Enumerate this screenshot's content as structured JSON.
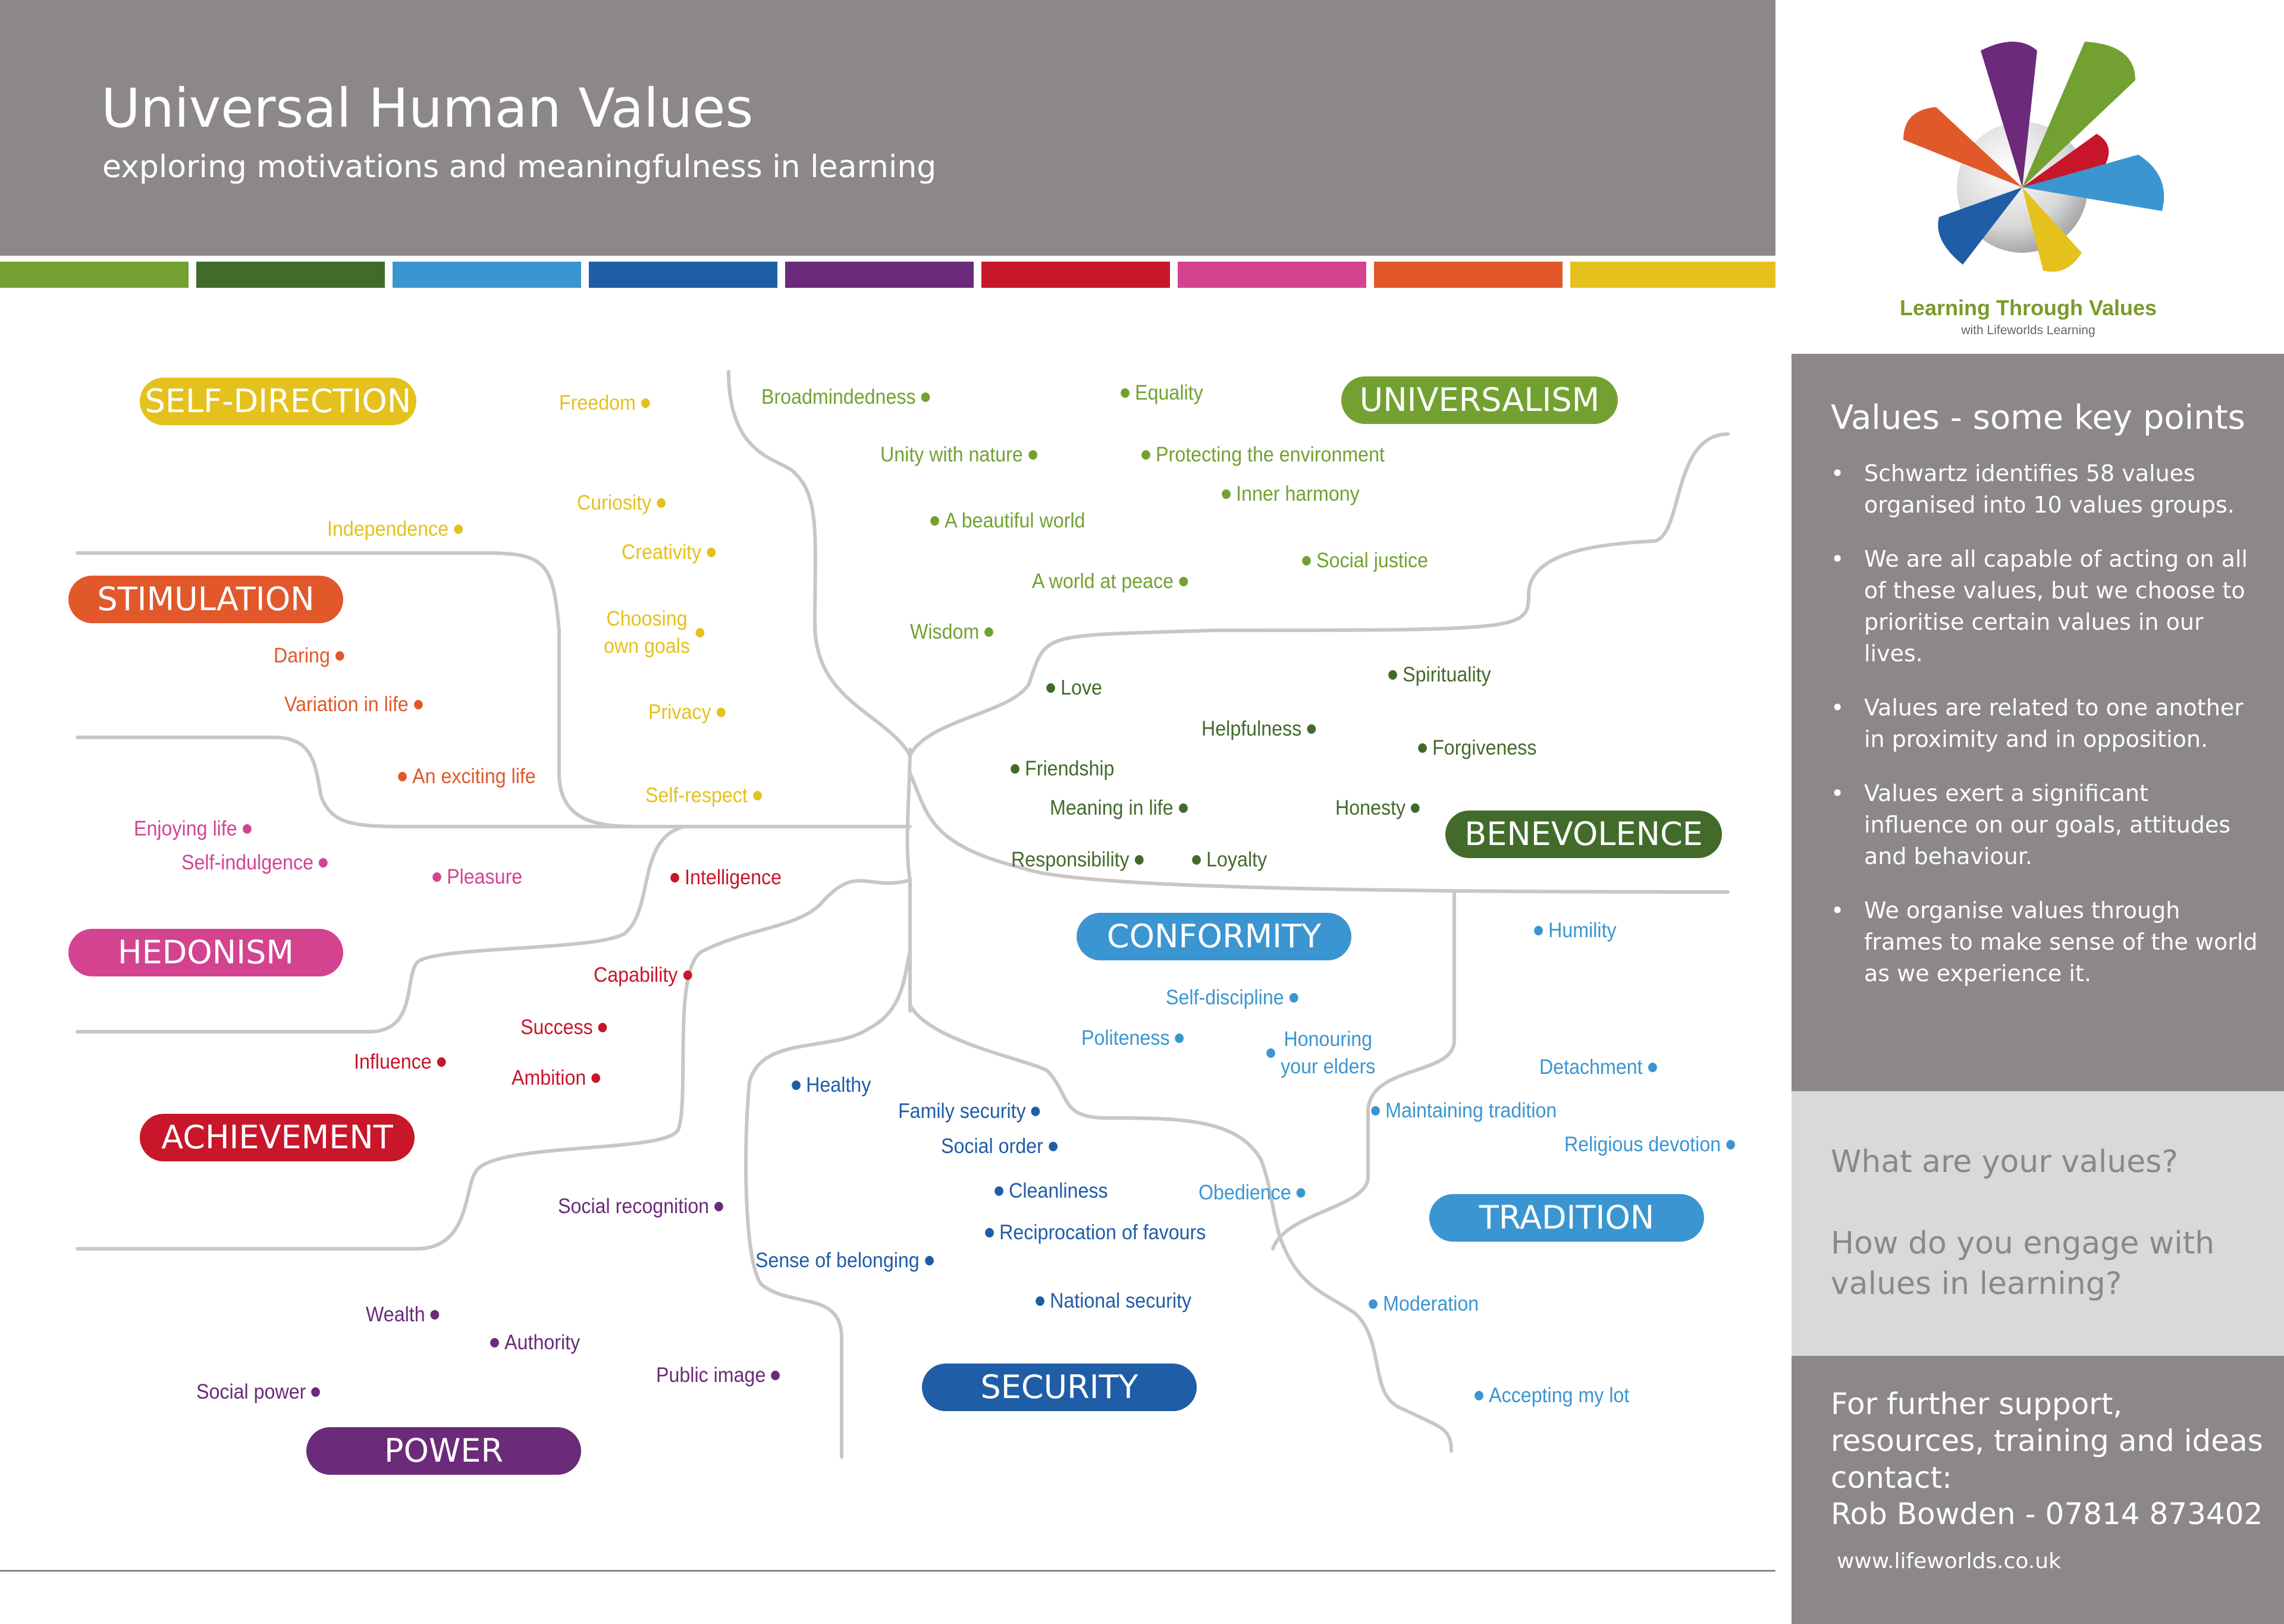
{
  "header": {
    "title": "Universal Human Values",
    "subtitle": "exploring motivations and meaningfulness in learning"
  },
  "stripe_colors": [
    "#72a132",
    "#426b2b",
    "#3b95d1",
    "#1f5da6",
    "#6b2a7a",
    "#c8162a",
    "#d34390",
    "#e1582a",
    "#e5c11d"
  ],
  "logo": {
    "text": "Learning Through Values",
    "tagline": "with Lifeworlds Learning"
  },
  "key_points": {
    "title": "Values  - some key points",
    "items": [
      "Schwartz identifies 58 values organised into 10  values groups.",
      "We are all capable of acting on all of these values, but we choose to prioritise certain values in our lives.",
      "Values are related to one another in proximity and in opposition.",
      "Values exert a significant influence on our goals, attitudes and behaviour.",
      "We organise values through frames to make sense of the world as we experience it."
    ]
  },
  "questions": [
    "What are your values?",
    "How do you engage with values in learning?"
  ],
  "contact": {
    "intro": "For further support, resources, training and ideas contact:",
    "name_phone": "Rob Bowden - 07814 873402",
    "website": "www.lifeworlds.co.uk"
  },
  "groups": [
    {
      "label": "SELF-DIRECTION",
      "color": "#e5c11d"
    },
    {
      "label": "STIMULATION",
      "color": "#e1582a"
    },
    {
      "label": "HEDONISM",
      "color": "#d34390"
    },
    {
      "label": "ACHIEVEMENT",
      "color": "#c8162a"
    },
    {
      "label": "POWER",
      "color": "#6b2a7a"
    },
    {
      "label": "SECURITY",
      "color": "#1f5da6"
    },
    {
      "label": "CONFORMITY",
      "color": "#3b95d1"
    },
    {
      "label": "TRADITION",
      "color": "#3b95d1"
    },
    {
      "label": "BENEVOLENCE",
      "color": "#426b2b"
    },
    {
      "label": "UNIVERSALISM",
      "color": "#72a132"
    }
  ],
  "values": [
    {
      "text": "Freedom",
      "group": 0
    },
    {
      "text": "Curiosity",
      "group": 0
    },
    {
      "text": "Independence",
      "group": 0
    },
    {
      "text": "Creativity",
      "group": 0
    },
    {
      "text": "Choosing\nown goals",
      "group": 0
    },
    {
      "text": "Privacy",
      "group": 0
    },
    {
      "text": "Self-respect",
      "group": 0
    },
    {
      "text": "Daring",
      "group": 1
    },
    {
      "text": "Variation in life",
      "group": 1
    },
    {
      "text": "An exciting life",
      "group": 1
    },
    {
      "text": "Enjoying life",
      "group": 2
    },
    {
      "text": "Self-indulgence",
      "group": 2
    },
    {
      "text": "Pleasure",
      "group": 2
    },
    {
      "text": "Intelligence",
      "group": 3
    },
    {
      "text": "Capability",
      "group": 3
    },
    {
      "text": "Success",
      "group": 3
    },
    {
      "text": "Influence",
      "group": 3
    },
    {
      "text": "Ambition",
      "group": 3
    },
    {
      "text": "Social recognition",
      "group": 4
    },
    {
      "text": "Wealth",
      "group": 4
    },
    {
      "text": "Authority",
      "group": 4
    },
    {
      "text": "Public image",
      "group": 4
    },
    {
      "text": "Social power",
      "group": 4
    },
    {
      "text": "Healthy",
      "group": 5
    },
    {
      "text": "Family security",
      "group": 5
    },
    {
      "text": "Social order",
      "group": 5
    },
    {
      "text": "Cleanliness",
      "group": 5
    },
    {
      "text": "Reciprocation of favours",
      "group": 5
    },
    {
      "text": "Sense of belonging",
      "group": 5
    },
    {
      "text": "National security",
      "group": 5
    },
    {
      "text": "Self-discipline",
      "group": 6
    },
    {
      "text": "Politeness",
      "group": 6
    },
    {
      "text": "Honouring\nyour elders",
      "group": 6
    },
    {
      "text": "Obedience",
      "group": 6
    },
    {
      "text": "Humility",
      "group": 7
    },
    {
      "text": "Detachment",
      "group": 7
    },
    {
      "text": "Maintaining tradition",
      "group": 7
    },
    {
      "text": "Religious devotion",
      "group": 7
    },
    {
      "text": "Moderation",
      "group": 7
    },
    {
      "text": "Accepting my lot",
      "group": 7
    },
    {
      "text": "Love",
      "group": 8
    },
    {
      "text": "Spirituality",
      "group": 8
    },
    {
      "text": "Helpfulness",
      "group": 8
    },
    {
      "text": "Forgiveness",
      "group": 8
    },
    {
      "text": "Friendship",
      "group": 8
    },
    {
      "text": "Meaning in life",
      "group": 8
    },
    {
      "text": "Honesty",
      "group": 8
    },
    {
      "text": "Responsibility",
      "group": 8
    },
    {
      "text": "Loyalty",
      "group": 8
    },
    {
      "text": "Broadmindedness",
      "group": 9
    },
    {
      "text": "Equality",
      "group": 9
    },
    {
      "text": "Unity with nature",
      "group": 9
    },
    {
      "text": "Protecting the environment",
      "group": 9
    },
    {
      "text": "Inner harmony",
      "group": 9
    },
    {
      "text": "A beautiful world",
      "group": 9
    },
    {
      "text": "Social justice",
      "group": 9
    },
    {
      "text": "A world at peace",
      "group": 9
    },
    {
      "text": "Wisdom",
      "group": 9
    }
  ]
}
